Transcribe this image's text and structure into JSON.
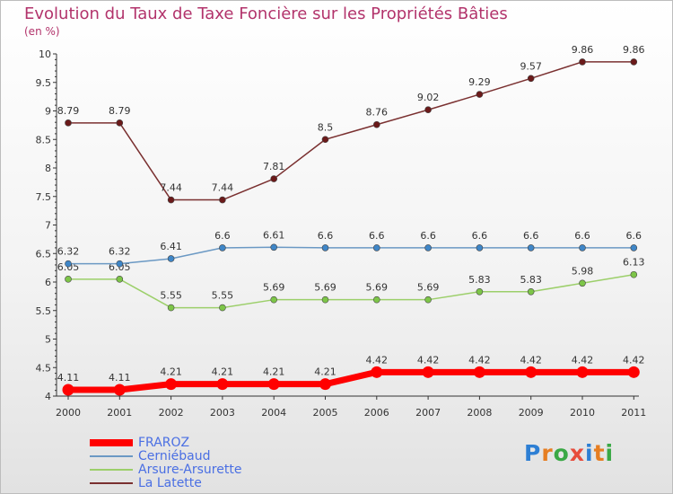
{
  "title": "Evolution du Taux de Taxe Foncière sur les Propriétés Bâties",
  "unit_label": "(en %)",
  "logo": {
    "text": "Proxiti",
    "letters": [
      "P",
      "r",
      "o",
      "x",
      "i",
      "t",
      "i"
    ],
    "colors": [
      "#2d7fd4",
      "#e67e22",
      "#3aa845",
      "#e74c3c",
      "#2d7fd4",
      "#e67e22",
      "#3aa845"
    ]
  },
  "chart_data": {
    "type": "line",
    "title": "Evolution du Taux de Taxe Foncière sur les Propriétés Bâties",
    "ylabel": "(en %)",
    "xlabel": "",
    "x": [
      "2000",
      "2001",
      "2002",
      "2003",
      "2004",
      "2005",
      "2006",
      "2007",
      "2008",
      "2009",
      "2010",
      "2011"
    ],
    "ylim": [
      4,
      10
    ],
    "yticks": [
      "4",
      "4.5",
      "5",
      "5.5",
      "6",
      "6.5",
      "7",
      "7.5",
      "8",
      "8.5",
      "9",
      "9.5",
      "10"
    ],
    "grid": false,
    "legend_position": "bottom-left",
    "series": [
      {
        "name": "FRAROZ",
        "color": "#ff0000",
        "marker": "#ff0000",
        "values": [
          4.11,
          4.11,
          4.21,
          4.21,
          4.21,
          4.21,
          4.42,
          4.42,
          4.42,
          4.42,
          4.42,
          4.42
        ],
        "labels": [
          "4.11",
          "4.11",
          "4.21",
          "4.21",
          "4.21",
          "4.21",
          "4.42",
          "4.42",
          "4.42",
          "4.42",
          "4.42",
          "4.42"
        ]
      },
      {
        "name": "Cerniébaud",
        "color": "#6b99c4",
        "marker": "#3f86c7",
        "values": [
          6.32,
          6.32,
          6.41,
          6.6,
          6.61,
          6.6,
          6.6,
          6.6,
          6.6,
          6.6,
          6.6,
          6.6
        ],
        "labels": [
          "6.32",
          "6.32",
          "6.41",
          "6.6",
          "6.61",
          "6.6",
          "6.6",
          "6.6",
          "6.6",
          "6.6",
          "6.6",
          "6.6"
        ]
      },
      {
        "name": "Arsure-Arsurette",
        "color": "#9ccf6a",
        "marker": "#7dc548",
        "values": [
          6.05,
          6.05,
          5.55,
          5.55,
          5.69,
          5.69,
          5.69,
          5.69,
          5.83,
          5.83,
          5.98,
          6.13
        ],
        "labels": [
          "6.05",
          "6.05",
          "5.55",
          "5.55",
          "5.69",
          "5.69",
          "5.69",
          "5.69",
          "5.83",
          "5.83",
          "5.98",
          "6.13"
        ]
      },
      {
        "name": "La Latette",
        "color": "#7a3030",
        "marker": "#6b1a1a",
        "values": [
          8.79,
          8.79,
          7.44,
          7.44,
          7.81,
          8.5,
          8.76,
          9.02,
          9.29,
          9.57,
          9.86,
          9.86
        ],
        "labels": [
          "8.79",
          "8.79",
          "7.44",
          "7.44",
          "7.81",
          "8.5",
          "8.76",
          "9.02",
          "9.29",
          "9.57",
          "9.86",
          "9.86"
        ]
      }
    ]
  }
}
